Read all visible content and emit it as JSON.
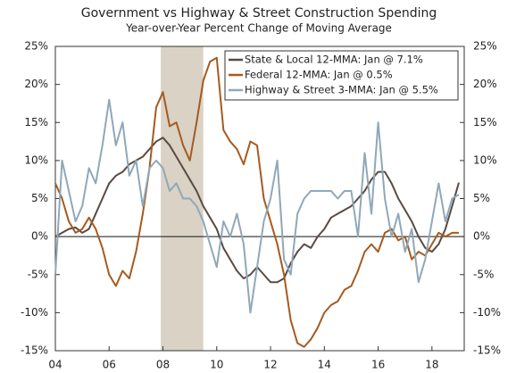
{
  "chart_data": {
    "type": "line",
    "title": "Government vs Highway & Street Construction Spending",
    "subtitle": "Year-over-Year Percent Change of Moving Average",
    "x": [
      2004,
      2004.25,
      2004.5,
      2004.75,
      2005,
      2005.25,
      2005.5,
      2005.75,
      2006,
      2006.25,
      2006.5,
      2006.75,
      2007,
      2007.25,
      2007.5,
      2007.75,
      2008,
      2008.25,
      2008.5,
      2008.75,
      2009,
      2009.25,
      2009.5,
      2009.75,
      2010,
      2010.25,
      2010.5,
      2010.75,
      2011,
      2011.25,
      2011.5,
      2011.75,
      2012,
      2012.25,
      2012.5,
      2012.75,
      2013,
      2013.25,
      2013.5,
      2013.75,
      2014,
      2014.25,
      2014.5,
      2014.75,
      2015,
      2015.25,
      2015.5,
      2015.75,
      2016,
      2016.25,
      2016.5,
      2016.75,
      2017,
      2017.25,
      2017.5,
      2017.75,
      2018,
      2018.25,
      2018.5,
      2018.75,
      2019
    ],
    "series": [
      {
        "name": "State & Local 12-MMA: Jan @ 7.1%",
        "color": "#5a4a42",
        "values": [
          0,
          0.5,
          1,
          1.2,
          0.5,
          1,
          3,
          5,
          7,
          8,
          8.5,
          9.5,
          10,
          10.5,
          11.5,
          12.5,
          13,
          12,
          10.5,
          9,
          7.5,
          6,
          4,
          2.5,
          1,
          -1.5,
          -3,
          -4.5,
          -5.5,
          -5,
          -4,
          -5,
          -6,
          -6,
          -5.5,
          -3.5,
          -2,
          -1,
          -1.5,
          0,
          1,
          2.5,
          3,
          3.5,
          4,
          5,
          6,
          7.5,
          8.5,
          8.5,
          7,
          5,
          3.5,
          2,
          0,
          -1.5,
          -2,
          -1,
          1,
          4,
          7.1
        ]
      },
      {
        "name": "Federal 12-MMA: Jan @ 0.5%",
        "color": "#a65a1e",
        "values": [
          7,
          5,
          2,
          0.5,
          1,
          2.5,
          1,
          -1.5,
          -5,
          -6.5,
          -4.5,
          -5.5,
          -2,
          3,
          9,
          17,
          19,
          14.5,
          15,
          12,
          10,
          15,
          20.5,
          23,
          23.5,
          14,
          12.5,
          11.5,
          9.5,
          12.5,
          12,
          5,
          2,
          -1,
          -5,
          -11,
          -14,
          -14.5,
          -13.5,
          -12,
          -10,
          -9,
          -8.5,
          -7,
          -6.5,
          -4.5,
          -2,
          -1,
          -2,
          0.5,
          1,
          -0.5,
          0,
          -3,
          -2,
          -2.5,
          -1,
          0.5,
          0,
          0.5,
          0.5
        ]
      },
      {
        "name": "Highway & Street 3-MMA: Jan @ 5.5%",
        "color": "#8fa8b8",
        "values": [
          -5,
          10,
          6,
          2,
          4,
          9,
          7,
          12,
          18,
          12,
          15,
          8,
          10,
          4,
          9,
          10,
          9,
          6,
          7,
          5,
          5,
          4,
          2,
          -1,
          -4,
          2,
          0,
          3,
          -1,
          -10,
          -4,
          2,
          5,
          10,
          -3,
          -5,
          3,
          5,
          6,
          6,
          6,
          6,
          5,
          6,
          6,
          0,
          11,
          3,
          15,
          5,
          0,
          3,
          -2,
          1,
          -6,
          -3,
          2,
          7,
          2,
          5,
          5.5
        ]
      }
    ],
    "shade": {
      "x": [
        2007.92,
        2009.5
      ],
      "color": "#d9d2c5"
    },
    "xlim": [
      2004,
      2019.2
    ],
    "xticks": [
      {
        "value": 2004,
        "label": "04"
      },
      {
        "value": 2006,
        "label": "06"
      },
      {
        "value": 2008,
        "label": "08"
      },
      {
        "value": 2010,
        "label": "10"
      },
      {
        "value": 2012,
        "label": "12"
      },
      {
        "value": 2014,
        "label": "14"
      },
      {
        "value": 2016,
        "label": "16"
      },
      {
        "value": 2018,
        "label": "18"
      }
    ],
    "ylim": [
      -15,
      25
    ],
    "yticks": [
      {
        "value": -15,
        "label": "-15%"
      },
      {
        "value": -10,
        "label": "-10%"
      },
      {
        "value": -5,
        "label": "-5%"
      },
      {
        "value": 0,
        "label": "0%"
      },
      {
        "value": 5,
        "label": "5%"
      },
      {
        "value": 10,
        "label": "10%"
      },
      {
        "value": 15,
        "label": "15%"
      },
      {
        "value": 20,
        "label": "20%"
      },
      {
        "value": 25,
        "label": "25%"
      }
    ],
    "y2lim": [
      -15,
      25
    ],
    "y2ticks": [
      {
        "value": -15,
        "label": "-15%"
      },
      {
        "value": -10,
        "label": "-10%"
      },
      {
        "value": -5,
        "label": "-5%"
      },
      {
        "value": 0,
        "label": "0%"
      },
      {
        "value": 5,
        "label": "5%"
      },
      {
        "value": 10,
        "label": "10%"
      },
      {
        "value": 15,
        "label": "15%"
      },
      {
        "value": 20,
        "label": "20%"
      },
      {
        "value": 25,
        "label": "25%"
      }
    ],
    "legend": "upper right"
  }
}
